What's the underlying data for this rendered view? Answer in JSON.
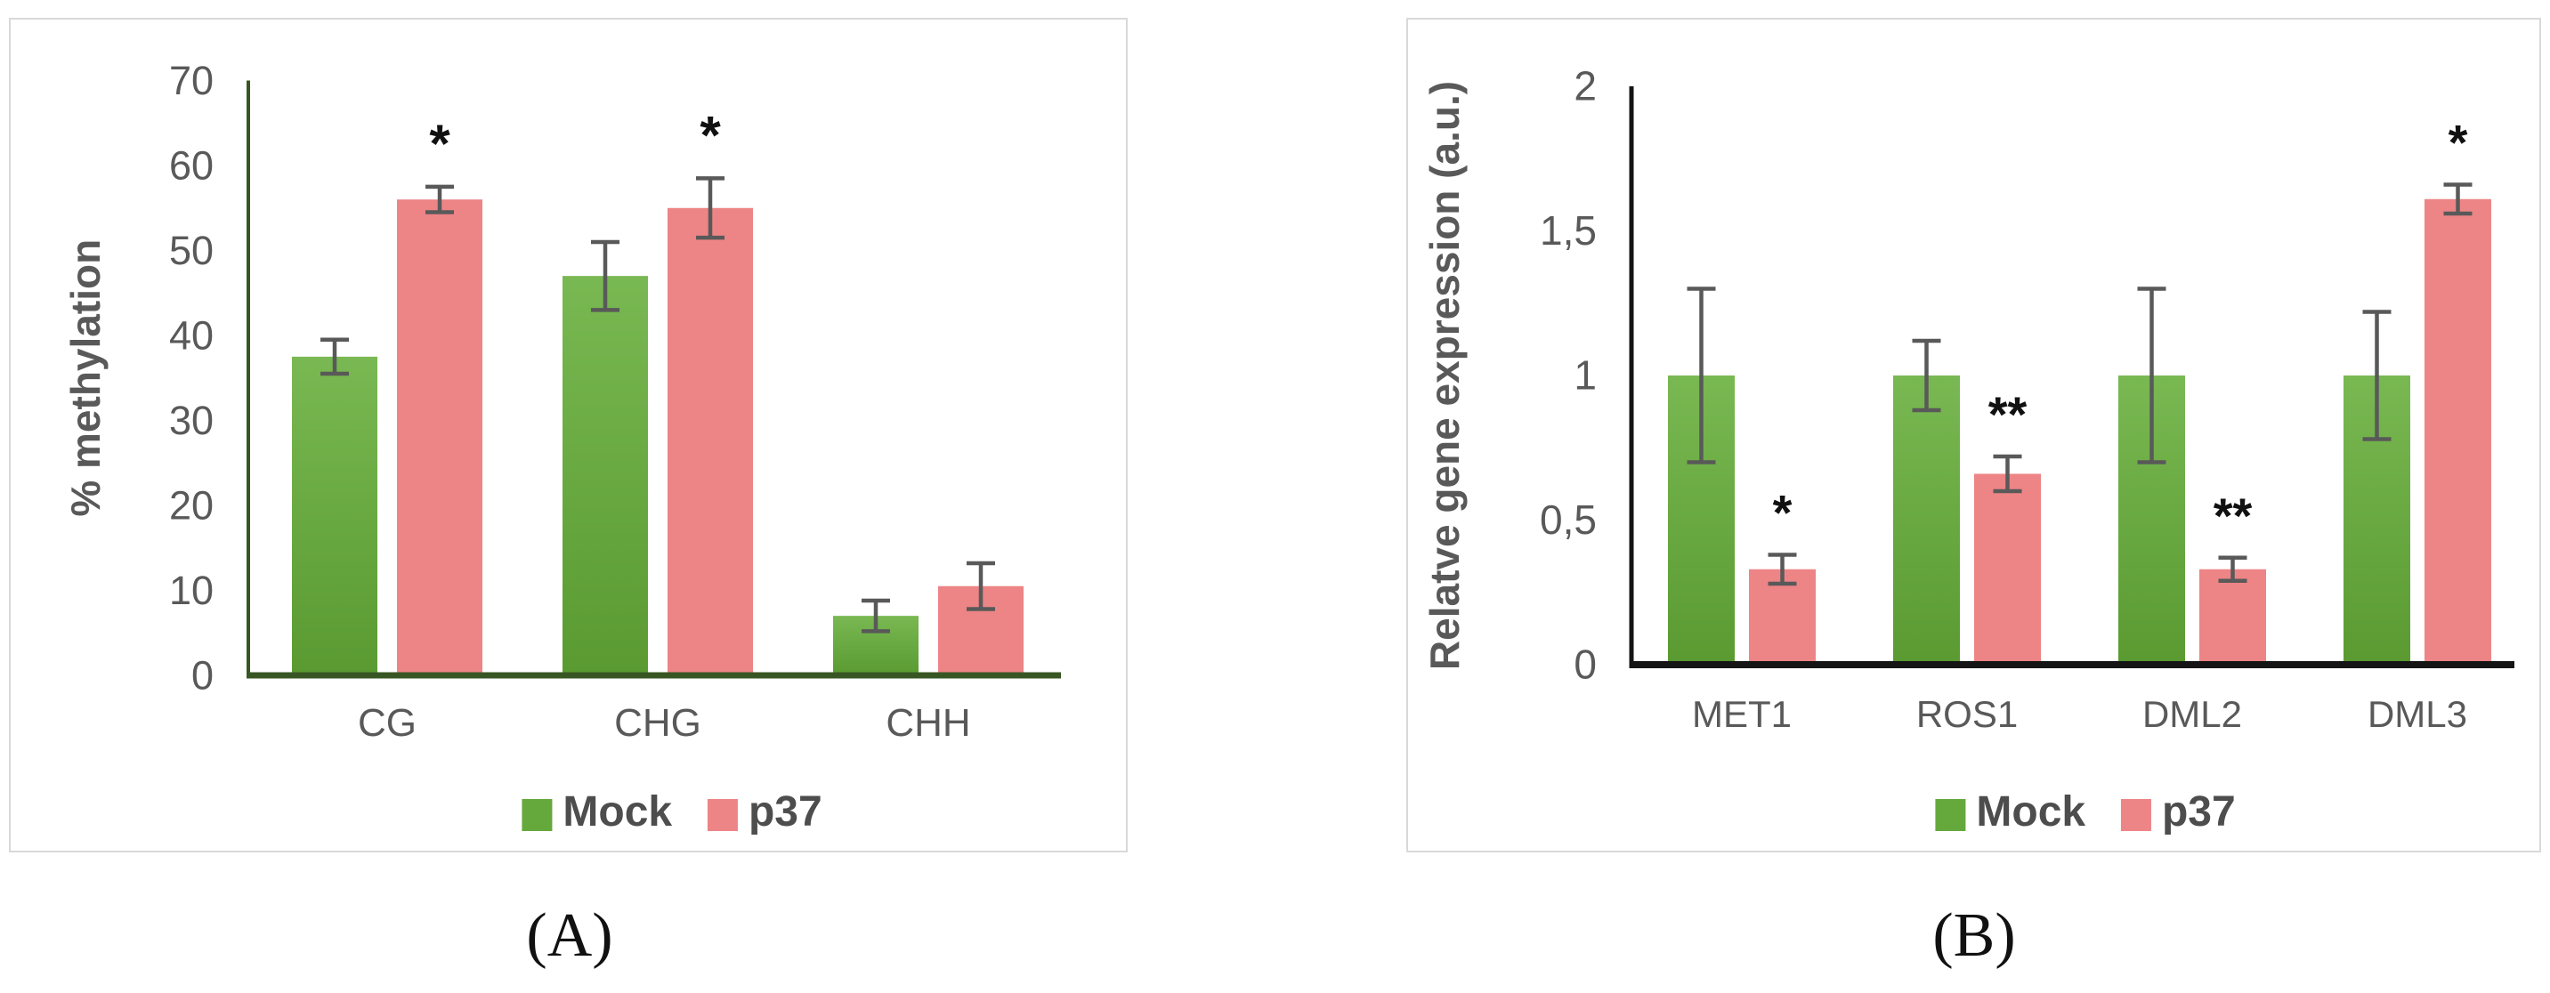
{
  "figure": {
    "caption_a": "(A)",
    "caption_b": "(B)"
  },
  "colors": {
    "mock_bar_top": "#79b852",
    "mock_bar_bottom": "#5a9a31",
    "mock_swatch": "#65a83c",
    "p37_bar": "#ed8486",
    "axis_a": "#375623",
    "axis_b": "#151515",
    "error_bar": "#595959",
    "tick_text": "#595959",
    "axis_title_text": "#595959",
    "category_text": "#595959",
    "legend_text": "#4d4d4d",
    "significance": "#111111",
    "panel_border": "#d9d9d9"
  },
  "legend": {
    "items": [
      {
        "key": "mock",
        "label": "Mock"
      },
      {
        "key": "p37",
        "label": "p37"
      }
    ]
  },
  "chart_data": [
    {
      "id": "methylation",
      "type": "bar",
      "title": "",
      "xlabel": "",
      "ylabel": "% methylation",
      "ylim": [
        0,
        70
      ],
      "yticks": [
        {
          "value": 0,
          "label": "0"
        },
        {
          "value": 10,
          "label": "10"
        },
        {
          "value": 20,
          "label": "20"
        },
        {
          "value": 30,
          "label": "30"
        },
        {
          "value": 40,
          "label": "40"
        },
        {
          "value": 50,
          "label": "50"
        },
        {
          "value": 60,
          "label": "60"
        },
        {
          "value": 70,
          "label": "70"
        }
      ],
      "categories": [
        "CG",
        "CHG",
        "CHH"
      ],
      "series": [
        {
          "name": "Mock",
          "values": [
            37.5,
            47,
            7
          ],
          "errors": [
            2,
            4,
            1.8
          ],
          "significance": [
            "",
            "",
            ""
          ]
        },
        {
          "name": "p37",
          "values": [
            56,
            55,
            10.5
          ],
          "errors": [
            1.5,
            3.5,
            2.7
          ],
          "significance": [
            "*",
            "*",
            ""
          ]
        }
      ],
      "grid": false,
      "legend_position": "bottom"
    },
    {
      "id": "gene-expression",
      "type": "bar",
      "title": "",
      "xlabel": "",
      "ylabel": "Relatve gene expression (a.u.)",
      "ylim": [
        0,
        2
      ],
      "yticks": [
        {
          "value": 0,
          "label": "0"
        },
        {
          "value": 0.5,
          "label": "0,5"
        },
        {
          "value": 1,
          "label": "1"
        },
        {
          "value": 1.5,
          "label": "1,5"
        },
        {
          "value": 2,
          "label": "2"
        }
      ],
      "categories": [
        "MET1",
        "ROS1",
        "DML2",
        "DML3"
      ],
      "series": [
        {
          "name": "Mock",
          "values": [
            1,
            1,
            1,
            1
          ],
          "errors": [
            0.3,
            0.12,
            0.3,
            0.22
          ],
          "significance": [
            "",
            "",
            "",
            ""
          ]
        },
        {
          "name": "p37",
          "values": [
            0.33,
            0.66,
            0.33,
            1.61
          ],
          "errors": [
            0.05,
            0.06,
            0.04,
            0.05
          ],
          "significance": [
            "*",
            "**",
            "**",
            "*"
          ]
        }
      ],
      "grid": false,
      "legend_position": "bottom"
    }
  ]
}
